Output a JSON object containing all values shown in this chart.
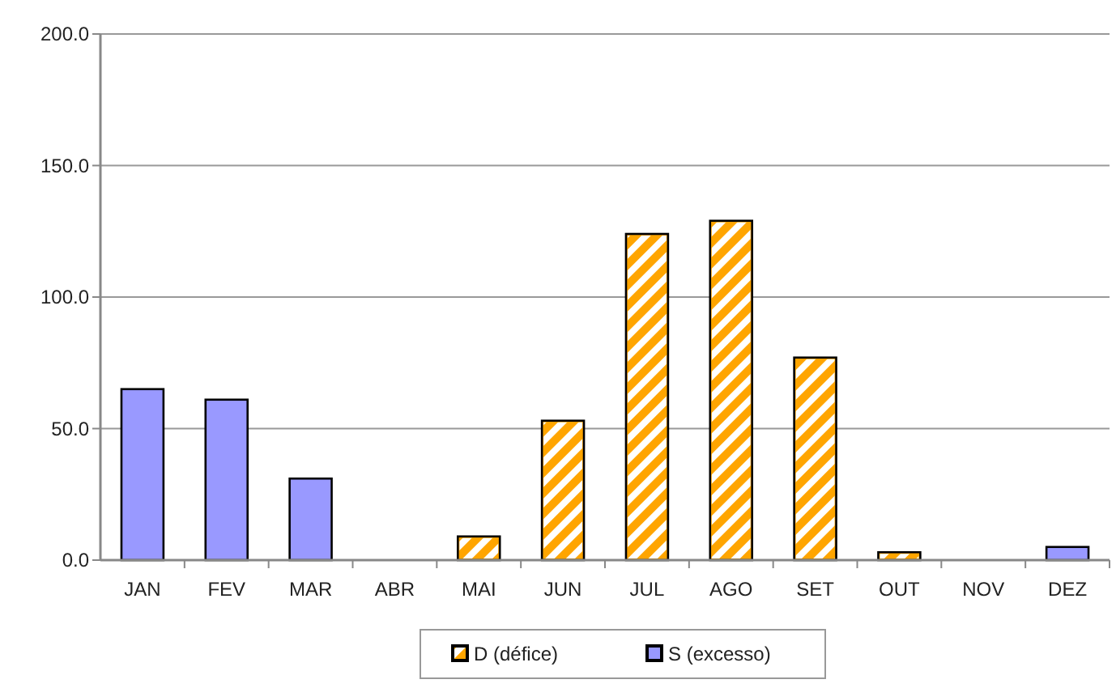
{
  "chart_data": {
    "type": "bar",
    "stacked": true,
    "categories": [
      "JAN",
      "FEV",
      "MAR",
      "ABR",
      "MAI",
      "JUN",
      "JUL",
      "AGO",
      "SET",
      "OUT",
      "NOV",
      "DEZ"
    ],
    "series": [
      {
        "name": "D (défice)",
        "color": "#ffa500",
        "values": [
          null,
          null,
          null,
          null,
          9,
          53,
          124,
          129,
          77,
          3,
          null,
          null
        ]
      },
      {
        "name": "S (excesso)",
        "color": "#9999ff",
        "values": [
          65,
          61,
          31,
          null,
          null,
          null,
          null,
          null,
          null,
          null,
          null,
          5
        ]
      }
    ],
    "ylim": [
      0,
      200
    ],
    "yticks": [
      {
        "value": 0,
        "label": "0.0"
      },
      {
        "value": 50,
        "label": "50.0"
      },
      {
        "value": 100,
        "label": "100.0"
      },
      {
        "value": 150,
        "label": "150.0"
      },
      {
        "value": 200,
        "label": "200.0"
      }
    ],
    "grid": "y",
    "legend": "bottom"
  }
}
